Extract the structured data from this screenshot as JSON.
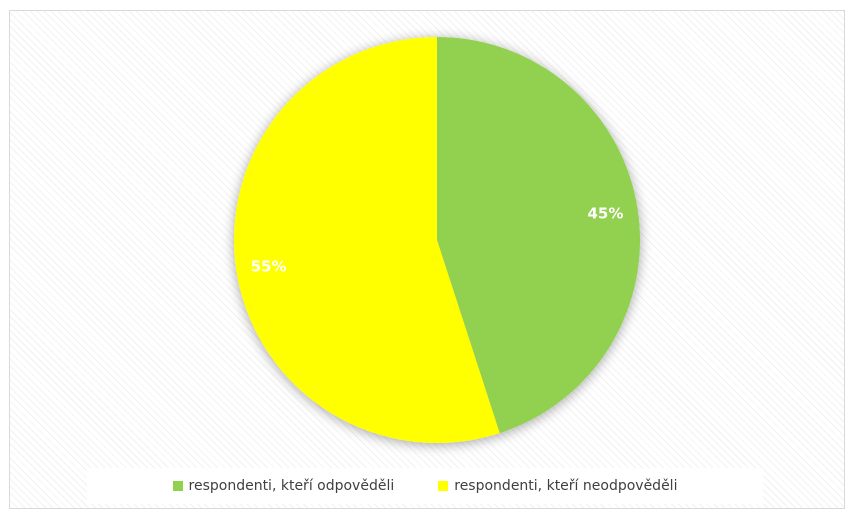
{
  "chart_data": {
    "type": "pie",
    "title": "",
    "start_angle_deg": 0,
    "direction": "clockwise",
    "legend_position": "bottom",
    "slices": [
      {
        "label": "respondenti, kteří odpověděli",
        "value": 45,
        "display": "45%",
        "color": "#92d050"
      },
      {
        "label": "respondenti, kteří neodpověděli",
        "value": 55,
        "display": "55%",
        "color": "#ffff00"
      }
    ]
  }
}
